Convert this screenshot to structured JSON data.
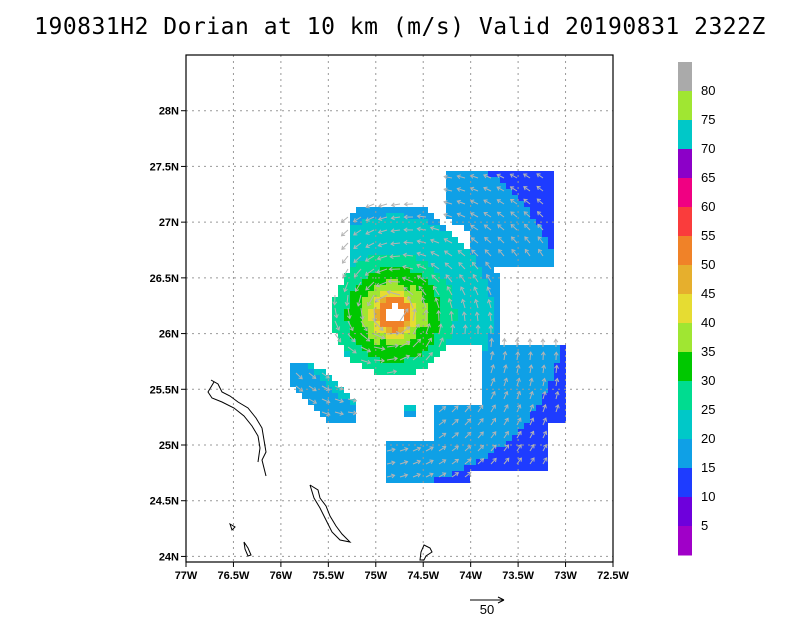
{
  "title": "190831H2 Dorian at 10 km (m/s) Valid 20190831  2322Z",
  "map": {
    "lon_labels": [
      "77W",
      "76.5W",
      "76W",
      "75.5W",
      "75W",
      "74.5W",
      "74W",
      "73.5W",
      "73W",
      "72.5W"
    ],
    "lat_labels": [
      "28N",
      "27.5N",
      "27N",
      "26.5N",
      "26N",
      "25.5N",
      "25N",
      "24.5N",
      "24N"
    ],
    "lon_range": [
      -77,
      -72.5
    ],
    "lat_range": [
      23.95,
      28.5
    ],
    "grid": true
  },
  "colorbar": {
    "labels": [
      "5",
      "10",
      "15",
      "20",
      "25",
      "30",
      "35",
      "40",
      "45",
      "50",
      "55",
      "60",
      "65",
      "70",
      "75",
      "80"
    ],
    "colors": [
      "#a000c8",
      "#6e00dc",
      "#1e3cff",
      "#0fa0e6",
      "#00c8c8",
      "#00dc90",
      "#00c800",
      "#a0e632",
      "#e6dc32",
      "#e6af2d",
      "#f08228",
      "#fa3c3c",
      "#f00082",
      "#8c00c8",
      "#00c8c8",
      "#a0e632",
      "#aaaaaa"
    ],
    "range": [
      0,
      85
    ]
  },
  "vector_legend": {
    "label": "50"
  },
  "colors": {
    "grid": "#999999",
    "vector": "#b4b4b4",
    "coast": "#000000"
  }
}
